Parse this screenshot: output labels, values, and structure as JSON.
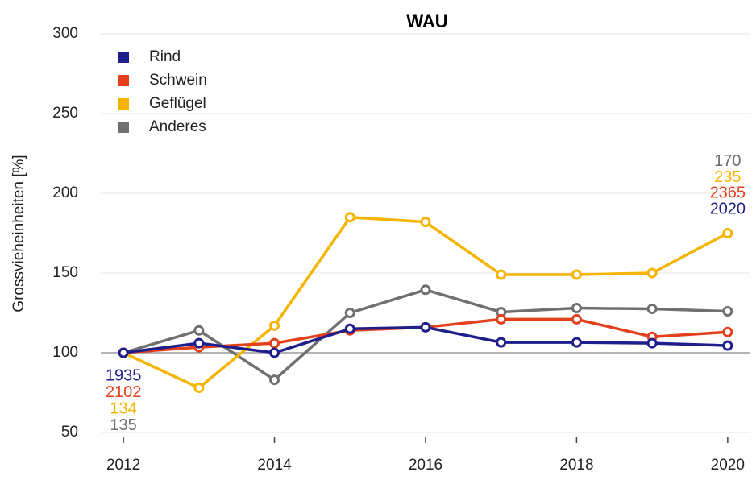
{
  "chart_data": {
    "type": "line",
    "title": "WAU",
    "y_label": "Grossvieheinheiten [%]",
    "x": [
      2012,
      2013,
      2014,
      2015,
      2016,
      2017,
      2018,
      2019,
      2020
    ],
    "xlim": [
      2011.7,
      2020.29
    ],
    "xticks": [
      2012,
      2014,
      2016,
      2018,
      2020
    ],
    "ylim": [
      50,
      300
    ],
    "yticks": [
      50,
      100,
      150,
      200,
      250,
      300
    ],
    "grid": true,
    "hline": 100,
    "legend": "top-left",
    "series": [
      {
        "name": "Rind",
        "color": "#1f1f8c",
        "values": [
          100,
          106,
          100,
          115,
          116,
          106.5,
          106.5,
          106,
          104.5
        ],
        "start_label": "1935",
        "end_label": "2020"
      },
      {
        "name": "Schwein",
        "color": "#e5401c",
        "values": [
          100,
          103.5,
          106,
          114,
          116,
          121,
          121,
          110,
          113
        ],
        "start_label": "2102",
        "end_label": "2365"
      },
      {
        "name": "Geflügel",
        "color": "#f5b400",
        "values": [
          100,
          78,
          117,
          185,
          182,
          149,
          149,
          150,
          175
        ],
        "start_label": "134",
        "end_label": "235"
      },
      {
        "name": "Anderes",
        "color": "#707070",
        "values": [
          100,
          114,
          83,
          125,
          139.5,
          125.5,
          128,
          127.5,
          126
        ],
        "start_label": "135",
        "end_label": "170"
      }
    ]
  }
}
